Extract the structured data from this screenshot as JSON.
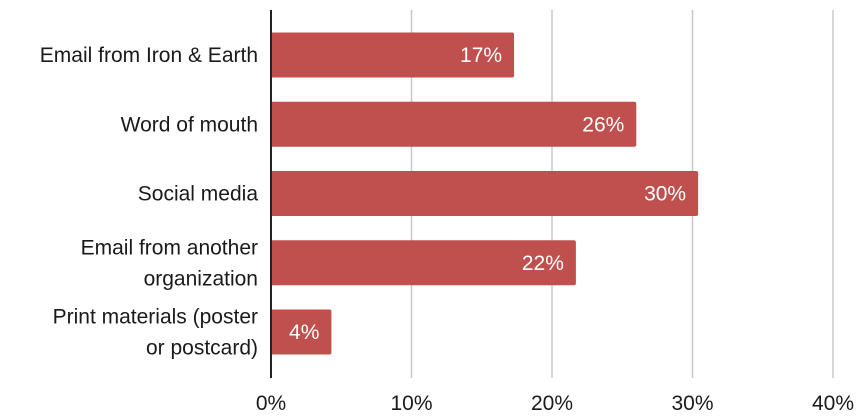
{
  "chart_data": {
    "type": "bar",
    "orientation": "horizontal",
    "categories": [
      [
        "Email from Iron & Earth"
      ],
      [
        "Word of mouth"
      ],
      [
        "Social media"
      ],
      [
        "Email from another",
        "organization"
      ],
      [
        "Print materials (poster",
        "or postcard)"
      ]
    ],
    "values": [
      17.3,
      26.0,
      30.4,
      21.7,
      4.3
    ],
    "data_labels": [
      "17%",
      "26%",
      "30%",
      "22%",
      "4%"
    ],
    "xlim": [
      0,
      40
    ],
    "x_ticks": [
      0,
      10,
      20,
      30,
      40
    ],
    "x_tick_labels": [
      "0%",
      "10%",
      "20%",
      "30%",
      "40%"
    ],
    "title": "",
    "xlabel": "",
    "ylabel": "",
    "grid": "vertical",
    "legend": "none",
    "colors": {
      "bar": "#c0504d",
      "label_text": "#ffffff",
      "grid": "#c8c8c8",
      "axis": "#222222"
    }
  }
}
